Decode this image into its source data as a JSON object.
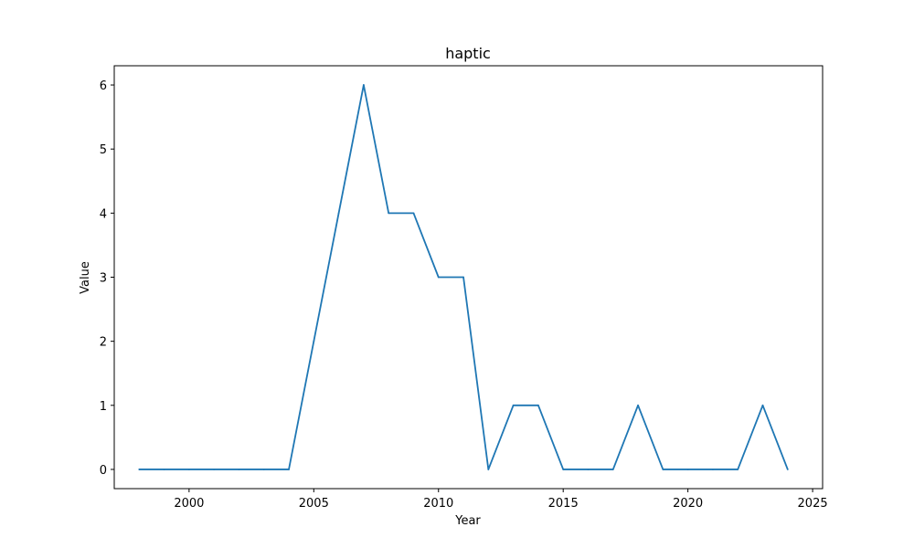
{
  "chart_data": {
    "type": "line",
    "title": "haptic",
    "xlabel": "Year",
    "ylabel": "Value",
    "xlim": [
      1997,
      2025.4
    ],
    "ylim": [
      -0.3,
      6.3
    ],
    "xticks": [
      2000,
      2005,
      2010,
      2015,
      2020,
      2025
    ],
    "yticks": [
      0,
      1,
      2,
      3,
      4,
      5,
      6
    ],
    "grid": false,
    "series": [
      {
        "color": "#1f77b4",
        "x": [
          1998,
          1999,
          2000,
          2001,
          2002,
          2003,
          2004,
          2005,
          2006,
          2007,
          2008,
          2009,
          2010,
          2011,
          2012,
          2013,
          2014,
          2015,
          2016,
          2017,
          2018,
          2019,
          2020,
          2021,
          2022,
          2023,
          2024
        ],
        "y": [
          0,
          0,
          0,
          0,
          0,
          0,
          0,
          2,
          4,
          6,
          4,
          4,
          3,
          3,
          0,
          1,
          1,
          0,
          0,
          0,
          1,
          0,
          0,
          0,
          0,
          1,
          0
        ]
      }
    ]
  }
}
